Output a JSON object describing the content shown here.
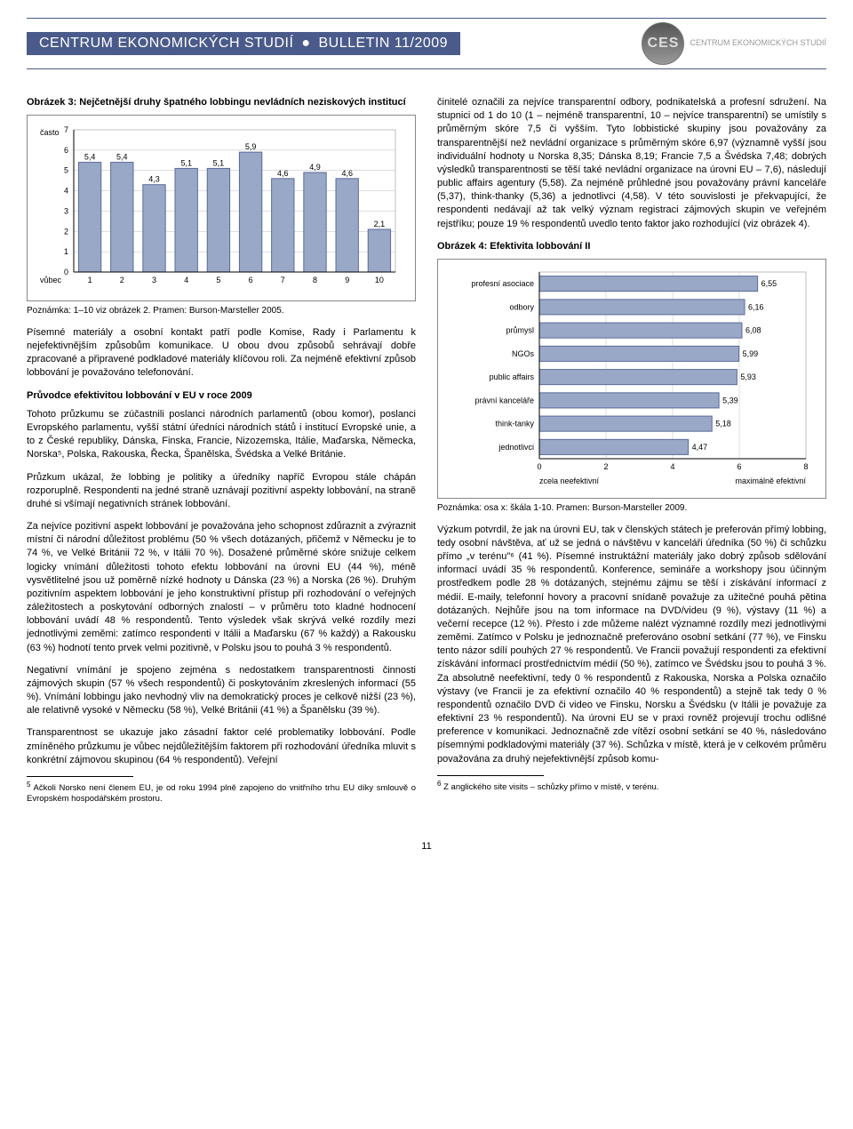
{
  "header": {
    "title_left": "CENTRUM EKONOMICKÝCH STUDIÍ",
    "title_right": "BULLETIN 11/2009",
    "logo_text": "CES",
    "logo_sub": "CENTRUM EKONOMICKÝCH STUDIÍ"
  },
  "left": {
    "fig3_title": "Obrázek 3: Nejčetnější druhy špatného lobbingu nevládních neziskových institucí",
    "fig3_note": "Poznámka: 1–10 viz obrázek 2. Pramen: Burson-Marsteller 2005.",
    "p1": "Písemné materiály a osobní kontakt patří podle Komise, Rady i Parlamentu k nejefektivnějším způsobům komunikace. U obou dvou způsobů sehrávají dobře zpracované a připravené podkladové materiály klíčovou roli. Za nejméně efektivní způsob lobbování je považováno telefonování.",
    "h2": "Průvodce efektivitou lobbování v EU v roce 2009",
    "p2": "Tohoto průzkumu se zúčastnili poslanci národních parlamentů (obou komor), poslanci Evropského parlamentu, vyšší státní úředníci národních států i institucí Evropské unie, a to z České republiky, Dánska, Finska, Francie, Nizozemska, Itálie, Maďarska, Německa, Norska⁵, Polska, Rakouska, Řecka, Španělska, Švédska a Velké Británie.",
    "p3": "Průzkum ukázal, že lobbing je politiky a úředníky napříč Evropou stále chápán rozporuplně. Respondenti na jedné straně uznávají pozitivní aspekty lobbování, na straně druhé si všímají negativních stránek lobbování.",
    "p4": "Za nejvíce pozitivní aspekt lobbování je považována jeho schopnost zdůraznit a zvýraznit místní či národní důležitost problému (50 % všech dotázaných, přičemž v Německu je to 74 %, ve Velké Británii 72 %, v Itálii 70 %). Dosažené průměrné skóre snižuje celkem logicky vnímání důležitosti tohoto efektu lobbování na úrovni EU (44 %), méně vysvětlitelné jsou už poměrně nízké hodnoty u Dánska (23 %) a Norska (26 %). Druhým pozitivním aspektem lobbování je jeho konstruktivní přístup při rozhodování o veřejných záležitostech a poskytování odborných znalostí – v průměru toto kladné hodnocení lobbování uvádí 48 % respondentů. Tento výsledek však skrývá velké rozdíly mezi jednotlivými zeměmi: zatímco respondenti v Itálii a Maďarsku (67 % každý) a Rakousku (63 %) hodnotí tento prvek velmi pozitivně, v Polsku jsou to pouhá 3 % respondentů.",
    "p5": "Negativní vnímání je spojeno zejména s nedostatkem transparentnosti činnosti zájmových skupin (57 % všech respondentů) či poskytováním zkreslených informací (55 %). Vnímání lobbingu jako nevhodný vliv na demokratický proces je celkově nižší (23 %), ale relativně vysoké v Německu (58 %), Velké Británii (41 %) a Španělsku (39 %).",
    "p6": "Transparentnost se ukazuje jako zásadní faktor celé problematiky lobbování. Podle zmíněného průzkumu je vůbec nejdůležitějším faktorem při rozhodování úředníka mluvit s konkrétní zájmovou skupinou (64 % respondentů). Veřejní",
    "fn5": "Ačkoli Norsko není členem EU, je od roku 1994 plně zapojeno do vnitřního trhu EU díky smlouvě o Evropském hospodářském prostoru."
  },
  "right": {
    "p1": "činitelé označili za nejvíce transparentní odbory, podnikatelská a profesní sdružení. Na stupnici od 1 do 10 (1 – nejméně transparentní, 10 – nejvíce transparentní) se umístily s průměrným skóre 7,5 či vyšším. Tyto lobbistické skupiny jsou považovány za transparentnější než nevládní organizace s průměrným skóre 6,97 (významně vyšší jsou individuální hodnoty u Norska 8,35; Dánska 8,19; Francie 7,5 a Švédska 7,48; dobrých výsledků transparentnosti se těší také nevládní organizace na úrovni EU – 7,6), následují public affairs agentury (5,58). Za nejméně průhledné jsou považovány právní kanceláře (5,37), think-thanky (5,36) a jednotlivci (4,58). V této souvislosti je překvapující, že respondenti nedávají až tak velký význam registraci zájmových skupin ve veřejném rejstříku; pouze 19 % respondentů uvedlo tento faktor jako rozhodující (viz obrázek 4).",
    "fig4_title": "Obrázek 4: Efektivita lobbování II",
    "fig4_note": "Poznámka: osa x: škála 1-10. Pramen: Burson-Marsteller 2009.",
    "p2": "Výzkum potvrdil, že jak na úrovni EU, tak v členských státech je preferován přímý lobbing, tedy osobní návštěva, ať už se jedná o návštěvu v kanceláři úředníka (50 %) či schůzku přímo „v terénu\"⁶ (41 %). Písemné instruktážní materiály jako dobrý způsob sdělování informací uvádí 35 % respondentů. Konference, semináře a workshopy jsou účinným prostředkem podle 28 % dotázaných, stejnému zájmu se těší i získávání informací z médií. E-maily, telefonní hovory a pracovní snídaně považuje za užitečné pouhá pětina dotázaných. Nejhůře jsou na tom informace na DVD/videu (9 %), výstavy (11 %) a večerní recepce (12 %). Přesto i zde můžeme nalézt významné rozdíly mezi jednotlivými zeměmi. Zatímco v Polsku je jednoznačně preferováno osobní setkání (77 %), ve Finsku tento názor sdílí pouhých 27 % respondentů. Ve Francii považují respondenti za efektivní získávání informací prostřednictvím médií (50 %), zatímco ve Švédsku jsou to pouhá 3 %. Za absolutně neefektivní, tedy 0 % respondentů z Rakouska, Norska a Polska označilo výstavy (ve Francii je za efektivní označilo 40 % respondentů) a stejně tak tedy 0 % respondentů označilo DVD či video ve Finsku, Norsku a Švédsku (v Itálii je považuje za efektivní 23 % respondentů). Na úrovni EU se v praxi rovněž projevují trochu odlišné preference v komunikaci. Jednoznačně zde vítězí osobní setkání se 40 %, následováno písemnými podkladovými materiály (37 %). Schůzka v místě, která je v celkovém průměru považována za druhý nejefektivnější způsob komu-",
    "fn6": "Z anglického site visits – schůzky přímo v místě, v terénu."
  },
  "chart3": {
    "type": "bar",
    "y_label_top": "často",
    "y_label_bottom": "vůbec",
    "categories": [
      "1",
      "2",
      "3",
      "4",
      "5",
      "6",
      "7",
      "8",
      "9",
      "10"
    ],
    "values": [
      5.4,
      5.4,
      4.3,
      5.1,
      5.1,
      5.9,
      4.6,
      4.9,
      4.6,
      2.1
    ],
    "value_labels": [
      "5,4",
      "5,4",
      "4,3",
      "5,1",
      "5,1",
      "5,9",
      "4,6",
      "4,9",
      "4,6",
      "2,1"
    ],
    "ylim": [
      0,
      7
    ],
    "ytick_step": 1,
    "bar_color": "#9aa8c8",
    "bar_border": "#5a6a9a",
    "grid_color": "#bfbfbf",
    "axis_color": "#000",
    "bg_color": "#ffffff",
    "label_fontsize": 9
  },
  "chart4": {
    "type": "hbar",
    "categories": [
      "profesní asociace",
      "odbory",
      "průmysl",
      "NGOs",
      "public affairs",
      "právní kanceláře",
      "think-tanky",
      "jednotlivci"
    ],
    "values": [
      6.55,
      6.16,
      6.08,
      5.99,
      5.93,
      5.39,
      5.18,
      4.47
    ],
    "value_labels": [
      "6,55",
      "6,16",
      "6,08",
      "5,99",
      "5,93",
      "5,39",
      "5,18",
      "4,47"
    ],
    "xlim": [
      0,
      8
    ],
    "xtick_step": 2,
    "x_label_left": "zcela neefektivní",
    "x_label_right": "maximálně efektivní",
    "bar_color": "#9aa8c8",
    "bar_border": "#5a6a9a",
    "grid_color": "#bfbfbf",
    "axis_color": "#000",
    "bg_color": "#ffffff",
    "label_fontsize": 9
  },
  "page_number": "11"
}
